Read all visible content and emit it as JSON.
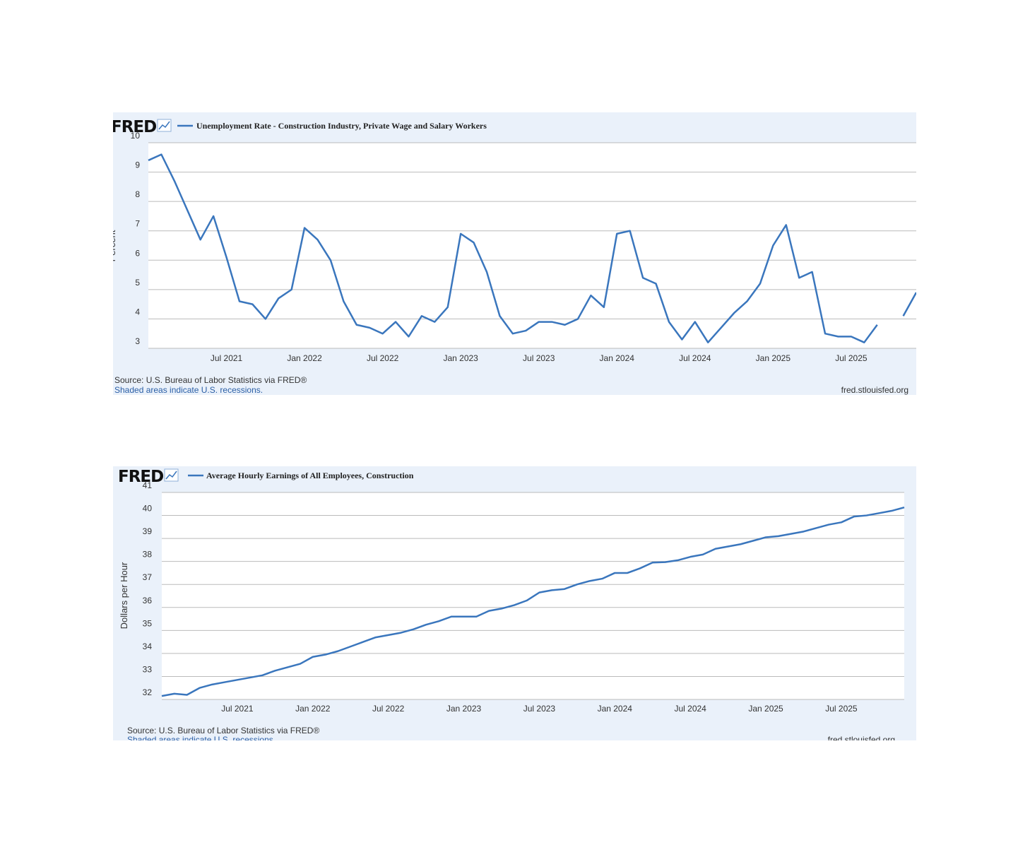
{
  "chart_data": [
    {
      "type": "line",
      "logo": "FRED",
      "y_label": "Percent",
      "source": "Source: U.S. Bureau of Labor Statistics via FRED®",
      "note": "Shaded areas indicate U.S. recessions.",
      "credit": "fred.stlouisfed.org",
      "categories": [
        null,
        null,
        null,
        null,
        null,
        null,
        "Jul 2021",
        null,
        null,
        null,
        null,
        null,
        "Jan 2022",
        null,
        null,
        null,
        null,
        null,
        "Jul 2022",
        null,
        null,
        null,
        null,
        null,
        "Jan 2023",
        null,
        null,
        null,
        null,
        null,
        "Jul 2023",
        null,
        null,
        null,
        null,
        null,
        "Jan 2024",
        null,
        null,
        null,
        null,
        null,
        "Jul 2024",
        null,
        null,
        null,
        null,
        null,
        "Jan 2025",
        null,
        null,
        null,
        null,
        null,
        "Jul 2025",
        null,
        null,
        null,
        null,
        null
      ],
      "series": [
        {
          "name": "Unemployment Rate - Construction Industry, Private Wage and Salary Workers",
          "color": "#3a76bd",
          "values": [
            9.4,
            9.6,
            8.7,
            7.7,
            6.7,
            7.5,
            6.1,
            4.6,
            4.5,
            4.0,
            4.7,
            5.0,
            7.1,
            6.7,
            6.0,
            4.6,
            3.8,
            3.7,
            3.5,
            3.9,
            3.4,
            4.1,
            3.9,
            4.4,
            6.9,
            6.6,
            5.6,
            4.1,
            3.5,
            3.6,
            3.9,
            3.9,
            3.8,
            4.0,
            4.8,
            4.4,
            6.9,
            7.0,
            5.4,
            5.2,
            3.9,
            3.3,
            3.9,
            3.2,
            3.7,
            4.2,
            4.6,
            5.2,
            6.5,
            7.2,
            5.4,
            5.6,
            3.5,
            3.4,
            3.4,
            3.2,
            3.8,
            null,
            4.1,
            4.9
          ]
        }
      ],
      "ylim": [
        3,
        10
      ],
      "yticks": [
        3,
        4,
        5,
        6,
        7,
        8,
        9,
        10
      ],
      "grid": true
    },
    {
      "type": "line",
      "logo": "FRED",
      "y_label": "Dollars per Hour",
      "source": "Source: U.S. Bureau of Labor Statistics via FRED®",
      "note": "Shaded areas indicate U.S. recessions.",
      "credit": "fred.stlouisfed.org",
      "categories": [
        null,
        null,
        null,
        null,
        null,
        null,
        "Jul 2021",
        null,
        null,
        null,
        null,
        null,
        "Jan 2022",
        null,
        null,
        null,
        null,
        null,
        "Jul 2022",
        null,
        null,
        null,
        null,
        null,
        "Jan 2023",
        null,
        null,
        null,
        null,
        null,
        "Jul 2023",
        null,
        null,
        null,
        null,
        null,
        "Jan 2024",
        null,
        null,
        null,
        null,
        null,
        "Jul 2024",
        null,
        null,
        null,
        null,
        null,
        "Jan 2025",
        null,
        null,
        null,
        null,
        null,
        "Jul 2025",
        null,
        null,
        null,
        null,
        null
      ],
      "series": [
        {
          "name": "Average Hourly Earnings of All Employees, Construction",
          "color": "#3a76bd",
          "values": [
            32.15,
            32.25,
            32.2,
            32.5,
            32.65,
            32.75,
            32.85,
            32.95,
            33.05,
            33.25,
            33.4,
            33.55,
            33.85,
            33.95,
            34.1,
            34.3,
            34.5,
            34.7,
            34.8,
            34.9,
            35.05,
            35.25,
            35.4,
            35.6,
            35.6,
            35.6,
            35.85,
            35.95,
            36.1,
            36.3,
            36.65,
            36.75,
            36.8,
            37.0,
            37.15,
            37.25,
            37.5,
            37.5,
            37.7,
            37.95,
            37.97,
            38.05,
            38.2,
            38.3,
            38.55,
            38.65,
            38.75,
            38.9,
            39.05,
            39.1,
            39.2,
            39.3,
            39.45,
            39.6,
            39.7,
            39.95,
            40.0,
            40.1,
            40.2,
            40.35
          ]
        }
      ],
      "ylim": [
        32,
        41
      ],
      "yticks": [
        32,
        33,
        34,
        35,
        36,
        37,
        38,
        39,
        40,
        41
      ],
      "grid": true
    }
  ]
}
